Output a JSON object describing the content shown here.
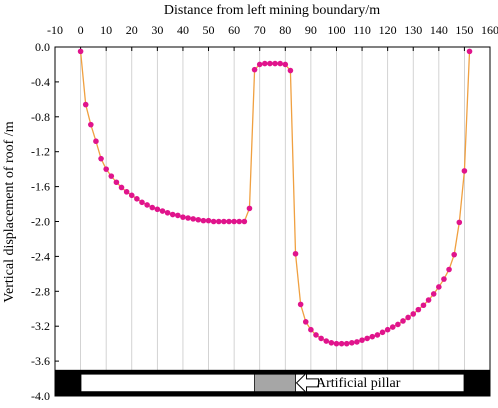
{
  "chart_data": {
    "type": "line",
    "title": "",
    "xlabel": "Distance from left mining boundary/m",
    "ylabel": "Vertical displacement of roof /m",
    "xlim": [
      -10,
      160
    ],
    "ylim": [
      -4.0,
      0.0
    ],
    "x_ticks": [
      -10,
      0,
      10,
      20,
      30,
      40,
      50,
      60,
      70,
      80,
      90,
      100,
      110,
      120,
      130,
      140,
      150,
      160
    ],
    "x_tick_labels": [
      "-10",
      "0",
      "10",
      "20",
      "30",
      "40",
      "50",
      "60",
      "70",
      "80",
      "90",
      "100",
      "110",
      "120",
      "130",
      "140",
      "150",
      "160"
    ],
    "y_ticks": [
      0.0,
      -0.4,
      -0.8,
      -1.2,
      -1.6,
      -2.0,
      -2.4,
      -2.8,
      -3.2,
      -3.6,
      -4.0
    ],
    "y_tick_labels": [
      "0.0",
      "-0.4",
      "-0.8",
      "-1.2",
      "-1.6",
      "-2.0",
      "-2.4",
      "-2.8",
      "-3.2",
      "-3.6",
      "-4.0"
    ],
    "x_axis_position": "top",
    "grid": "vertical",
    "line_color": "#f0a040",
    "marker_color": "#e0148c",
    "annotation": "Artificial pillar",
    "series": [
      {
        "name": "",
        "points": [
          [
            0,
            -0.05
          ],
          [
            2,
            -0.66
          ],
          [
            4,
            -0.89
          ],
          [
            6,
            -1.08
          ],
          [
            8,
            -1.28
          ],
          [
            10,
            -1.4
          ],
          [
            12,
            -1.48
          ],
          [
            14,
            -1.55
          ],
          [
            16,
            -1.61
          ],
          [
            18,
            -1.66
          ],
          [
            20,
            -1.7
          ],
          [
            22,
            -1.74
          ],
          [
            24,
            -1.78
          ],
          [
            26,
            -1.81
          ],
          [
            28,
            -1.84
          ],
          [
            30,
            -1.86
          ],
          [
            32,
            -1.88
          ],
          [
            34,
            -1.9
          ],
          [
            36,
            -1.92
          ],
          [
            38,
            -1.93
          ],
          [
            40,
            -1.95
          ],
          [
            42,
            -1.96
          ],
          [
            44,
            -1.97
          ],
          [
            46,
            -1.98
          ],
          [
            48,
            -1.99
          ],
          [
            50,
            -1.99
          ],
          [
            52,
            -2.0
          ],
          [
            54,
            -2.0
          ],
          [
            56,
            -2.0
          ],
          [
            58,
            -2.0
          ],
          [
            60,
            -2.0
          ],
          [
            62,
            -2.0
          ],
          [
            64,
            -2.0
          ],
          [
            66,
            -1.85
          ],
          [
            68,
            -0.26
          ],
          [
            70,
            -0.2
          ],
          [
            72,
            -0.19
          ],
          [
            74,
            -0.19
          ],
          [
            76,
            -0.19
          ],
          [
            78,
            -0.19
          ],
          [
            80,
            -0.2
          ],
          [
            82,
            -0.27
          ],
          [
            84,
            -2.37
          ],
          [
            86,
            -2.95
          ],
          [
            88,
            -3.15
          ],
          [
            90,
            -3.24
          ],
          [
            92,
            -3.3
          ],
          [
            94,
            -3.34
          ],
          [
            96,
            -3.37
          ],
          [
            98,
            -3.39
          ],
          [
            100,
            -3.4
          ],
          [
            102,
            -3.4
          ],
          [
            104,
            -3.4
          ],
          [
            106,
            -3.39
          ],
          [
            108,
            -3.38
          ],
          [
            110,
            -3.36
          ],
          [
            112,
            -3.34
          ],
          [
            114,
            -3.32
          ],
          [
            116,
            -3.3
          ],
          [
            118,
            -3.27
          ],
          [
            120,
            -3.24
          ],
          [
            122,
            -3.21
          ],
          [
            124,
            -3.18
          ],
          [
            126,
            -3.14
          ],
          [
            128,
            -3.1
          ],
          [
            130,
            -3.06
          ],
          [
            132,
            -3.01
          ],
          [
            134,
            -2.96
          ],
          [
            136,
            -2.9
          ],
          [
            138,
            -2.83
          ],
          [
            140,
            -2.75
          ],
          [
            142,
            -2.66
          ],
          [
            144,
            -2.55
          ],
          [
            146,
            -2.38
          ],
          [
            148,
            -2.01
          ],
          [
            150,
            -1.42
          ],
          [
            152,
            -0.05
          ]
        ]
      }
    ],
    "schematic": {
      "strata_top": -3.7,
      "strata_bottom": -4.0,
      "seam_x": [
        -10,
        160
      ],
      "seam_top": -3.75,
      "seam_bottom": -3.95,
      "pillar_x": [
        68,
        84
      ]
    }
  }
}
